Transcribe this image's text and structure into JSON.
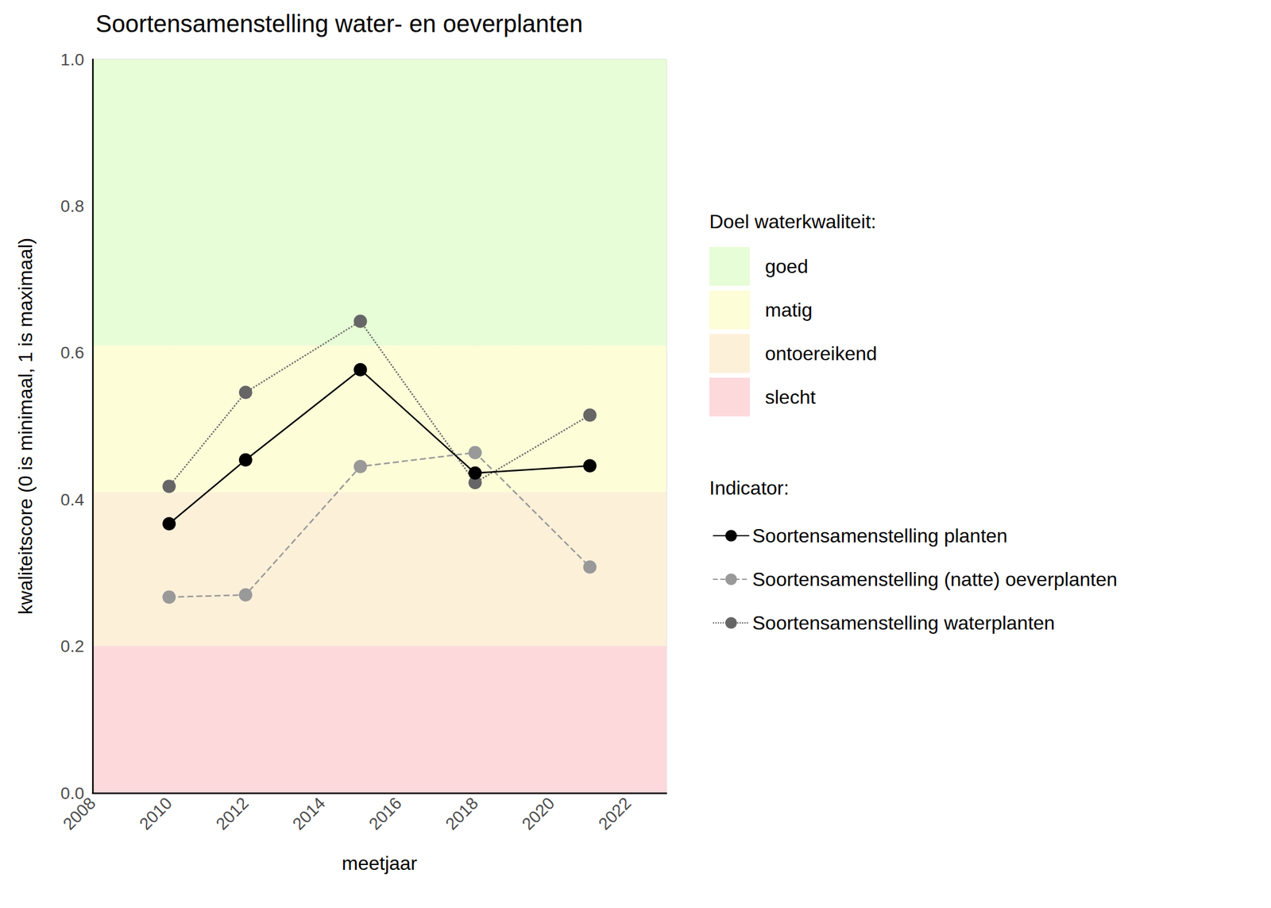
{
  "chart_data": {
    "type": "line",
    "title": "Soortensamenstelling water- en oeverplanten",
    "x_label": "meetjaar",
    "y_label": "kwaliteitscore (0 is minimaal, 1 is maximaal)",
    "x": [
      2010,
      2012,
      2015,
      2018,
      2021
    ],
    "series": [
      {
        "name": "Soortensamenstelling planten",
        "color": "#000000",
        "marker": "circle",
        "line_style": "solid",
        "values": [
          0.367,
          0.454,
          0.577,
          0.436,
          0.446
        ]
      },
      {
        "name": "Soortensamenstelling (natte) oeverplanten",
        "color": "#999999",
        "marker": "circle",
        "line_style": "dashed",
        "values": [
          0.267,
          0.27,
          0.445,
          0.464,
          0.308
        ]
      },
      {
        "name": "Soortensamenstelling waterplanten",
        "color": "#666666",
        "marker": "circle",
        "line_style": "dotted",
        "values": [
          0.418,
          0.546,
          0.643,
          0.423,
          0.515
        ]
      }
    ],
    "legend_title": "Indicator:",
    "band_title": "Doel waterkwaliteit:",
    "bands": [
      {
        "name": "goed",
        "from": 0.61,
        "to": 1,
        "color": "#e7fdd7"
      },
      {
        "name": "matig",
        "from": 0.41,
        "to": 0.61,
        "color": "#fdfdd8"
      },
      {
        "name": "ontoereikend",
        "from": 0.2,
        "to": 0.41,
        "color": "#fdf0d9"
      },
      {
        "name": "slecht",
        "from": 0,
        "to": 0.2,
        "color": "#fdd9dc"
      }
    ],
    "xlim": [
      2008,
      2023
    ],
    "xticks": [
      2008,
      2010,
      2012,
      2014,
      2016,
      2018,
      2020,
      2022
    ],
    "ylim": [
      0,
      1
    ],
    "yticks": [
      {
        "value": 0,
        "label": "0.0"
      },
      0.2,
      0.4,
      0.6,
      0.8,
      {
        "value": 1,
        "label": "1.0"
      }
    ],
    "grid": true,
    "legend": "right"
  }
}
